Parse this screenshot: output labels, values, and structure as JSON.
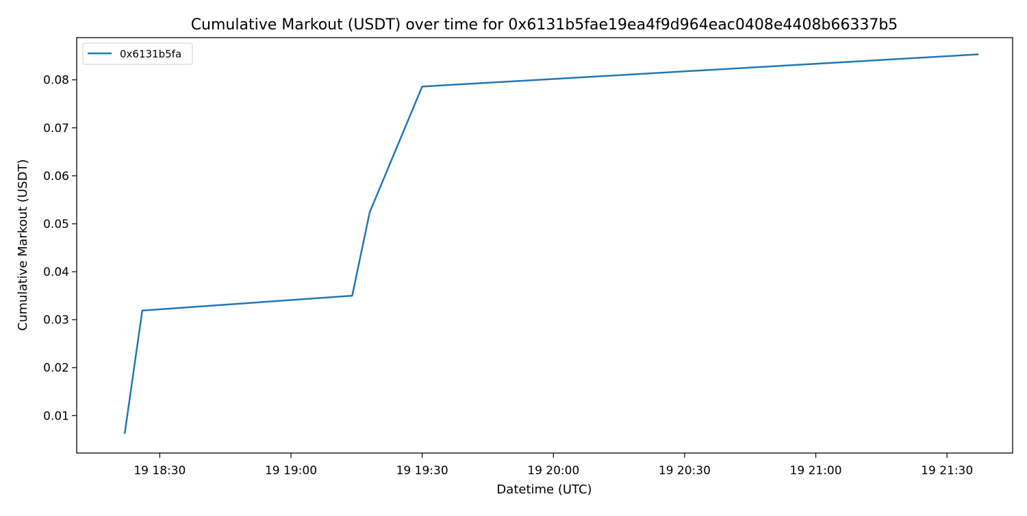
{
  "chart_data": {
    "type": "line",
    "title": "Cumulative Markout (USDT) over time for 0x6131b5fae19ea4f9d964eac0408e4408b66337b5",
    "xlabel": "Datetime (UTC)",
    "ylabel": "Cumulative Markout (USDT)",
    "x_axis_type": "time",
    "xlim": [
      "18:11",
      "21:45"
    ],
    "ylim": [
      0.0022,
      0.0888
    ],
    "x_ticks": [
      {
        "value": "18:30",
        "label": "19 18:30"
      },
      {
        "value": "19:00",
        "label": "19 19:00"
      },
      {
        "value": "19:30",
        "label": "19 19:30"
      },
      {
        "value": "20:00",
        "label": "19 20:00"
      },
      {
        "value": "20:30",
        "label": "19 20:30"
      },
      {
        "value": "21:00",
        "label": "19 21:00"
      },
      {
        "value": "21:30",
        "label": "19 21:30"
      }
    ],
    "y_ticks": [
      {
        "value": 0.01,
        "label": "0.01"
      },
      {
        "value": 0.02,
        "label": "0.02"
      },
      {
        "value": 0.03,
        "label": "0.03"
      },
      {
        "value": 0.04,
        "label": "0.04"
      },
      {
        "value": 0.05,
        "label": "0.05"
      },
      {
        "value": 0.06,
        "label": "0.06"
      },
      {
        "value": 0.07,
        "label": "0.07"
      },
      {
        "value": 0.08,
        "label": "0.08"
      }
    ],
    "grid": false,
    "legend_position": "top-left",
    "series": [
      {
        "name": "0x6131b5fa",
        "color": "#1f77b4",
        "x": [
          "18:22",
          "18:26",
          "19:14",
          "19:18",
          "19:30",
          "21:37"
        ],
        "y": [
          0.0064,
          0.0319,
          0.035,
          0.0524,
          0.0786,
          0.0853
        ]
      }
    ]
  }
}
